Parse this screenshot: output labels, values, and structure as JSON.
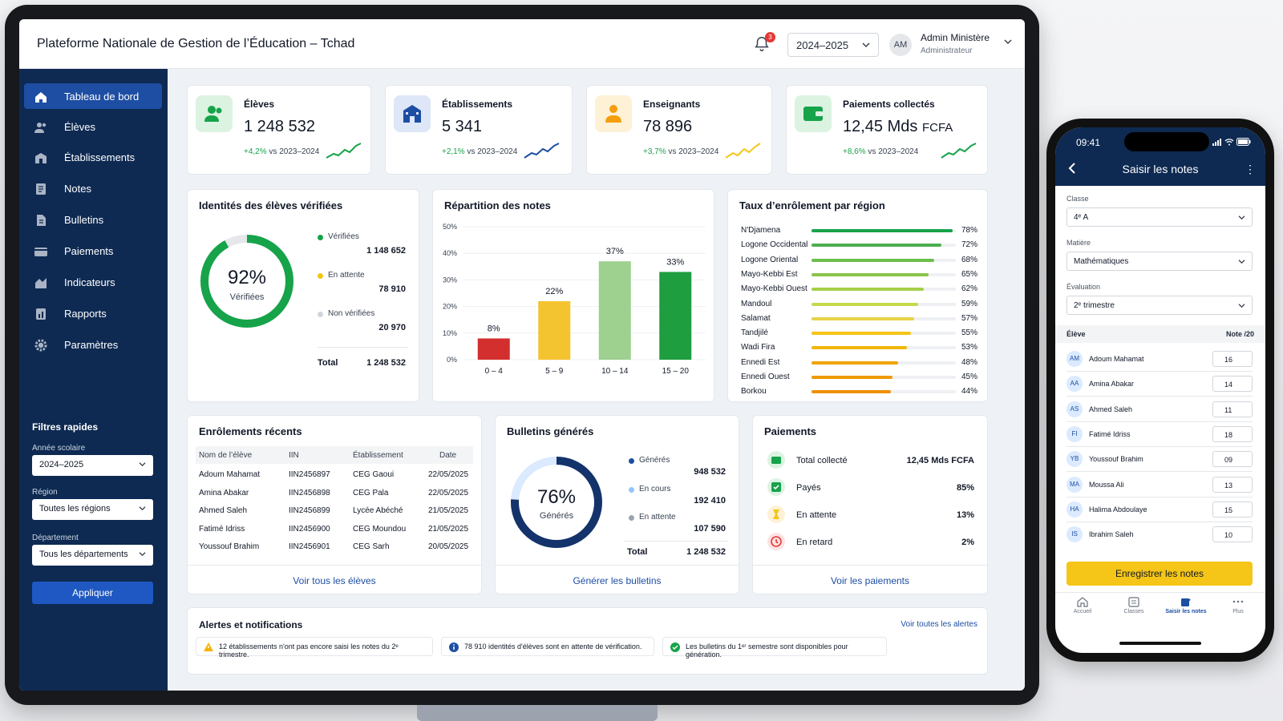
{
  "app": {
    "title": "Plateforme Nationale de Gestion de l’Éducation – Tchad",
    "notif_count": "3",
    "year": "2024–2025",
    "user_initials": "AM",
    "user_name": "Admin Ministère",
    "user_role": "Administrateur"
  },
  "sidebar": {
    "items": [
      {
        "label": "Tableau de bord",
        "icon": "home-icon"
      },
      {
        "label": "Élèves",
        "icon": "users-icon"
      },
      {
        "label": "Établissements",
        "icon": "school-icon"
      },
      {
        "label": "Notes",
        "icon": "notes-icon"
      },
      {
        "label": "Bulletins",
        "icon": "report-card-icon"
      },
      {
        "label": "Paiements",
        "icon": "wallet-icon"
      },
      {
        "label": "Indicateurs",
        "icon": "indicators-icon"
      },
      {
        "label": "Rapports",
        "icon": "reports-icon"
      },
      {
        "label": "Paramètres",
        "icon": "gear-icon"
      }
    ],
    "filters_title": "Filtres rapides",
    "year_label": "Année scolaire",
    "year_value": "2024–2025",
    "region_label": "Région",
    "region_value": "Toutes les régions",
    "dept_label": "Département",
    "dept_value": "Tous les départements",
    "apply": "Appliquer"
  },
  "kpis": [
    {
      "label": "Élèves",
      "value": "1 248 532",
      "delta": "+4,2%",
      "trend": "vs 2023–2024",
      "color": "#16a34a"
    },
    {
      "label": "Établissements",
      "value": "5 341",
      "delta": "+2,1%",
      "trend": "vs 2023–2024",
      "color": "#1d4ea3"
    },
    {
      "label": "Enseignants",
      "value": "78 896",
      "delta": "+3,7%",
      "trend": "vs 2023–2024",
      "color": "#f5c518"
    },
    {
      "label": "Paiements collectés",
      "value": "12,45 Mds",
      "unit": "FCFA",
      "delta": "+8,6%",
      "trend": "vs 2023–2024",
      "color": "#16a34a"
    }
  ],
  "identities": {
    "title": "Identités des élèves vérifiées",
    "percent": "92%",
    "percent_value": 92,
    "center_label": "Vérifiées",
    "legend": [
      {
        "label": "Vérifiées",
        "value": "1 148 652",
        "color": "#16a34a"
      },
      {
        "label": "En attente",
        "value": "78 910",
        "color": "#f5c518"
      },
      {
        "label": "Non vérifiées",
        "value": "20 970",
        "color": "#d1d5db"
      }
    ],
    "total_label": "Total",
    "total_value": "1 248 532"
  },
  "grades": {
    "title": "Répartition des notes"
  },
  "enrollment": {
    "title": "Taux d’enrôlement par région",
    "rows": [
      {
        "region": "N'Djamena",
        "pct": "78%"
      },
      {
        "region": "Logone Occidental",
        "pct": "72%"
      },
      {
        "region": "Logone Oriental",
        "pct": "68%"
      },
      {
        "region": "Mayo-Kebbi Est",
        "pct": "65%"
      },
      {
        "region": "Mayo-Kebbi Ouest",
        "pct": "62%"
      },
      {
        "region": "Mandoul",
        "pct": "59%"
      },
      {
        "region": "Salamat",
        "pct": "57%"
      },
      {
        "region": "Tandjilé",
        "pct": "55%"
      },
      {
        "region": "Wadi Fira",
        "pct": "53%"
      },
      {
        "region": "Ennedi Est",
        "pct": "48%"
      },
      {
        "region": "Ennedi Ouest",
        "pct": "45%"
      },
      {
        "region": "Borkou",
        "pct": "44%"
      }
    ]
  },
  "recent": {
    "title": "Enrôlements récents",
    "headers": [
      "Nom de l’élève",
      "IIN",
      "Établissement",
      "Date"
    ],
    "rows": [
      [
        "Adoum Mahamat",
        "IIN2456897",
        "CEG Gaoui",
        "22/05/2025"
      ],
      [
        "Amina Abakar",
        "IIN2456898",
        "CEG Pala",
        "22/05/2025"
      ],
      [
        "Ahmed Saleh",
        "IIN2456899",
        "Lycée Abéché",
        "21/05/2025"
      ],
      [
        "Fatimé Idriss",
        "IIN2456900",
        "CEG Moundou",
        "21/05/2025"
      ],
      [
        "Youssouf Brahim",
        "IIN2456901",
        "CEG Sarh",
        "20/05/2025"
      ]
    ],
    "link": "Voir tous les élèves"
  },
  "bulletins": {
    "title": "Bulletins générés",
    "percent": "76%",
    "percent_value": 76,
    "center_label": "Générés",
    "legend": [
      {
        "label": "Générés",
        "value": "948 532",
        "color": "#1d4ea3"
      },
      {
        "label": "En cours",
        "value": "192 410",
        "color": "#93c5fd"
      },
      {
        "label": "En attente",
        "value": "107 590",
        "color": "#9ca3af"
      }
    ],
    "total_label": "Total",
    "total_value": "1 248 532",
    "link": "Générer les bulletins"
  },
  "payments": {
    "title": "Paiements",
    "rows": [
      {
        "label": "Total collecté",
        "value": "12,45 Mds FCFA",
        "icon": "wallet-icon",
        "color": "#16a34a"
      },
      {
        "label": "Payés",
        "value": "85%",
        "icon": "check-icon",
        "color": "#16a34a"
      },
      {
        "label": "En attente",
        "value": "13%",
        "icon": "hourglass-icon",
        "color": "#f5c518"
      },
      {
        "label": "En retard",
        "value": "2%",
        "icon": "clock-icon",
        "color": "#e53935"
      }
    ],
    "link": "Voir les paiements"
  },
  "alerts": {
    "title": "Alertes et notifications",
    "link": "Voir toutes les alertes",
    "items": [
      "12 établissements n'ont pas encore saisi les notes du 2ᵉ trimestre.",
      "78 910 identités d'élèves sont en attente de vérification.",
      "Les bulletins du 1ᵉʳ semestre sont disponibles pour génération."
    ]
  },
  "phone": {
    "time": "09:41",
    "title": "Saisir les notes",
    "class_label": "Classe",
    "class_value": "4ᵉ A",
    "subject_label": "Matière",
    "subject_value": "Mathématiques",
    "eval_label": "Évaluation",
    "eval_value": "2ᵉ trimestre",
    "col_student": "Élève",
    "col_grade": "Note /20",
    "students": [
      {
        "initials": "AM",
        "name": "Adoum Mahamat",
        "grade": "16"
      },
      {
        "initials": "AA",
        "name": "Amina Abakar",
        "grade": "14"
      },
      {
        "initials": "AS",
        "name": "Ahmed Saleh",
        "grade": "11"
      },
      {
        "initials": "FI",
        "name": "Fatimé Idriss",
        "grade": "18"
      },
      {
        "initials": "YB",
        "name": "Youssouf Brahim",
        "grade": "09"
      },
      {
        "initials": "MA",
        "name": "Moussa Ali",
        "grade": "13"
      },
      {
        "initials": "HA",
        "name": "Halima Abdoulaye",
        "grade": "15"
      },
      {
        "initials": "IS",
        "name": "Ibrahim Saleh",
        "grade": "10"
      }
    ],
    "save": "Enregistrer les notes",
    "tabs": [
      "Accueil",
      "Classes",
      "Saisir les notes",
      "Plus"
    ]
  },
  "chart_data": {
    "type": "bar",
    "categories": [
      "0 – 4",
      "5 – 9",
      "10 – 14",
      "15 – 20"
    ],
    "values": [
      8,
      22,
      37,
      33
    ],
    "value_labels": [
      "8%",
      "22%",
      "37%",
      "33%"
    ],
    "colors": [
      "#d32f2f",
      "#f4c430",
      "#9ed08f",
      "#1e9e3f"
    ],
    "title": "Répartition des notes",
    "yticks": [
      "0%",
      "10%",
      "20%",
      "30%",
      "40%",
      "50%"
    ],
    "ylim": [
      0,
      50
    ],
    "grid": true
  }
}
